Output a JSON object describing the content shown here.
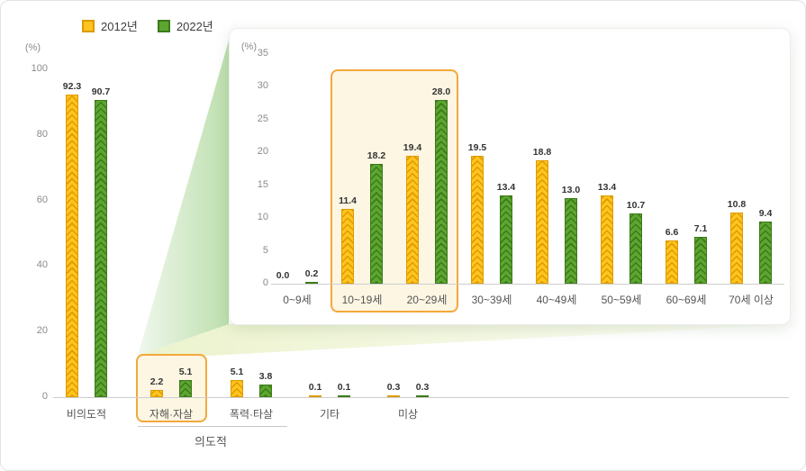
{
  "legend": {
    "items": [
      {
        "label": "2012년"
      },
      {
        "label": "2022년"
      }
    ]
  },
  "colors": {
    "bar_2012": "#FFC41E",
    "bar_2012_dark": "#DD9B00",
    "bar_2022": "#5CA630",
    "bar_2022_dark": "#3C7A1A",
    "highlight_border": "#F3A83B",
    "highlight_bg": "#FCF6E3",
    "funnel_green": "#86C46A",
    "funnel_yellow": "#DCE9A4"
  },
  "chart_data": [
    {
      "id": "cause-of-death-intent",
      "type": "bar",
      "ylabel": "(%)",
      "ylim": [
        0,
        100
      ],
      "yticks": [
        0,
        20,
        40,
        60,
        80,
        100
      ],
      "grid": false,
      "legend_position": "top-left",
      "categories": [
        "비의도적",
        "자해·자살",
        "폭력·타살",
        "기타",
        "미상"
      ],
      "series": [
        {
          "name": "2012년",
          "values": [
            92.3,
            2.2,
            5.1,
            0.1,
            0.3
          ]
        },
        {
          "name": "2022년",
          "values": [
            90.7,
            5.1,
            3.8,
            0.1,
            0.3
          ]
        }
      ],
      "highlight_category": "자해·자살",
      "group_annotation": {
        "label": "의도적",
        "categories": [
          "자해·자살",
          "폭력·타살"
        ]
      }
    },
    {
      "id": "self-harm-suicide-by-age",
      "type": "bar",
      "ylabel": "(%)",
      "ylim": [
        0,
        35
      ],
      "yticks": [
        0,
        5,
        10,
        15,
        20,
        25,
        30,
        35
      ],
      "grid": false,
      "categories": [
        "0~9세",
        "10~19세",
        "20~29세",
        "30~39세",
        "40~49세",
        "50~59세",
        "60~69세",
        "70세 이상"
      ],
      "series": [
        {
          "name": "2012년",
          "values": [
            0.0,
            11.4,
            19.4,
            19.5,
            18.8,
            13.4,
            6.6,
            10.8
          ]
        },
        {
          "name": "2022년",
          "values": [
            0.2,
            18.2,
            28.0,
            13.4,
            13.0,
            10.7,
            7.1,
            9.4
          ]
        }
      ],
      "highlight_categories": [
        "10~19세",
        "20~29세"
      ]
    }
  ]
}
